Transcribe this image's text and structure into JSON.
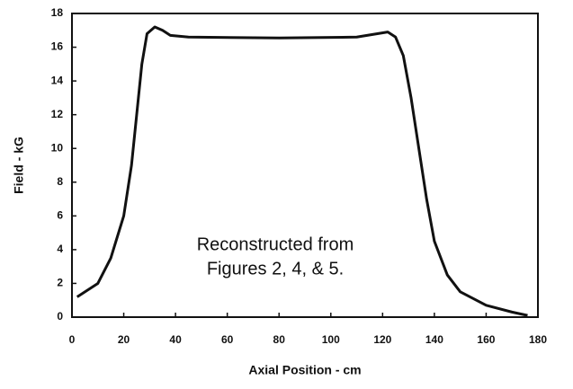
{
  "chart_data": {
    "type": "line",
    "x_label": "Axial Position - cm",
    "y_label": "Field - kG",
    "annotation": [
      "Reconstructed from",
      "Figures 2, 4, & 5."
    ],
    "xlim": [
      0,
      180
    ],
    "ylim": [
      0,
      18
    ],
    "xticks": [
      0,
      20,
      40,
      60,
      80,
      100,
      120,
      140,
      160,
      180
    ],
    "yticks": [
      0,
      2,
      4,
      6,
      8,
      10,
      12,
      14,
      16,
      18
    ],
    "series": [
      {
        "name": "Field",
        "color": "#111111",
        "x": [
          2,
          10,
          15,
          20,
          23,
          25,
          27,
          29,
          32,
          35,
          38,
          45,
          80,
          110,
          118,
          122,
          125,
          128,
          131,
          134,
          137,
          140,
          145,
          150,
          160,
          170,
          176
        ],
        "values": [
          1.2,
          2.0,
          3.5,
          6,
          9,
          12,
          15,
          16.8,
          17.2,
          17.0,
          16.7,
          16.6,
          16.55,
          16.6,
          16.8,
          16.9,
          16.6,
          15.5,
          13,
          10,
          7,
          4.5,
          2.5,
          1.5,
          0.7,
          0.3,
          0.1
        ]
      }
    ]
  }
}
